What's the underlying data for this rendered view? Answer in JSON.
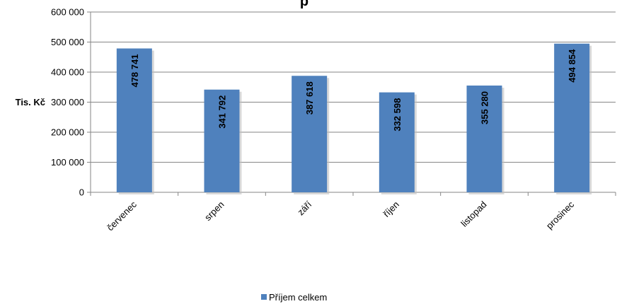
{
  "chart_data": {
    "type": "bar",
    "title": "",
    "visible_title_fragment": "p",
    "ylabel": "Tis. Kč",
    "xlabel": "",
    "ylim": [
      0,
      600000
    ],
    "yticks": [
      0,
      100000,
      200000,
      300000,
      400000,
      500000,
      600000
    ],
    "ytick_labels": [
      "0",
      "100 000",
      "200 000",
      "300 000",
      "400 000",
      "500 000",
      "600 000"
    ],
    "categories": [
      "červenec",
      "srpen",
      "září",
      "říjen",
      "listopad",
      "prosinec"
    ],
    "series": [
      {
        "name": "Příjem celkem",
        "values": [
          478741,
          341792,
          387618,
          332598,
          355280,
          494854
        ],
        "labels": [
          "478 741",
          "341 792",
          "387 618",
          "332 598",
          "355 280",
          "494 854"
        ],
        "color": "#4F81BD"
      }
    ],
    "grid": true,
    "legend_position": "bottom"
  }
}
